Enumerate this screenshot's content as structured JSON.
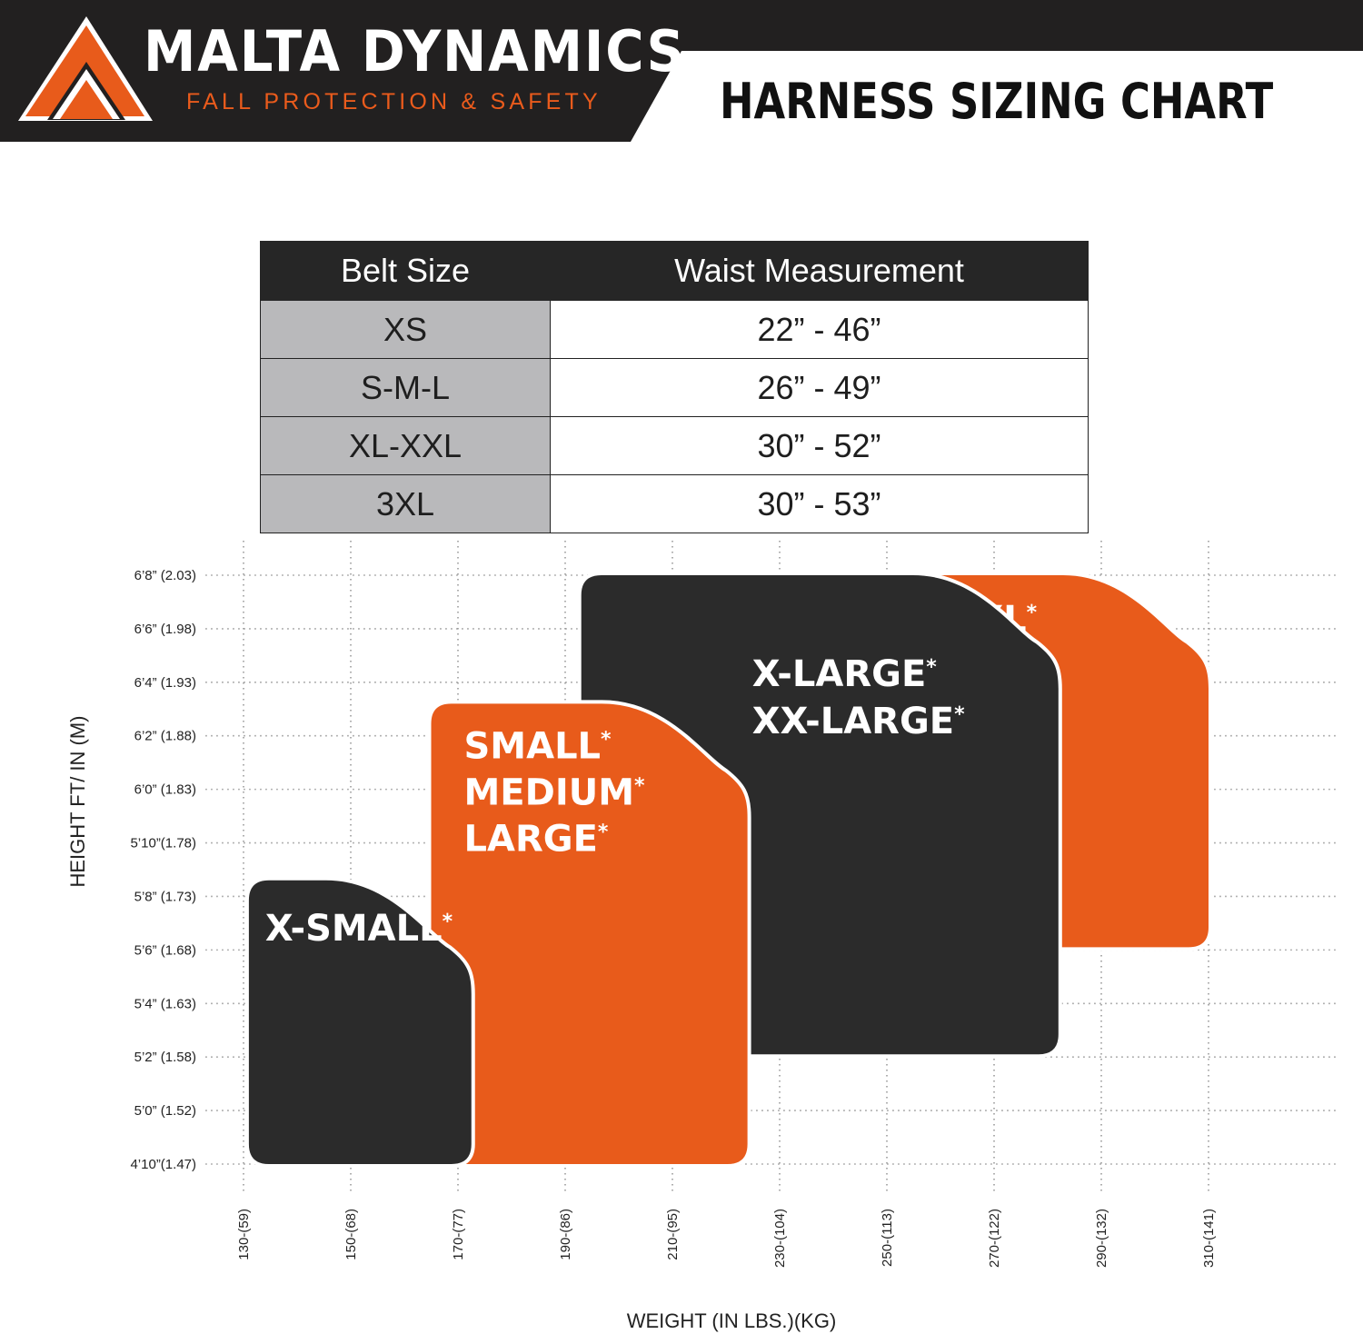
{
  "header": {
    "brand_name": "MALTA DYNAMICS",
    "tagline": "FALL PROTECTION & SAFETY",
    "title": "HARNESS SIZING CHART"
  },
  "colors": {
    "orange": "#e85b1b",
    "dark": "#2b2b2b",
    "header_bg": "#222020",
    "table_gray": "#b9b9bb"
  },
  "belt_table": {
    "headers": [
      "Belt Size",
      "Waist Measurement"
    ],
    "rows": [
      {
        "size": "XS",
        "waist": "22” - 46”"
      },
      {
        "size": "S-M-L",
        "waist": "26” - 49”"
      },
      {
        "size": "XL-XXL",
        "waist": "30” - 52”"
      },
      {
        "size": "3XL",
        "waist": "30” - 53”"
      }
    ]
  },
  "chart_data": {
    "type": "area",
    "xlabel": "WEIGHT (IN LBS.)(KG)",
    "ylabel": "HEIGHT FT/ IN (M)",
    "grid": true,
    "x_ticks": [
      {
        "value": 130,
        "label": "130-(59)"
      },
      {
        "value": 150,
        "label": "150-(68)"
      },
      {
        "value": 170,
        "label": "170-(77)"
      },
      {
        "value": 190,
        "label": "190-(86)"
      },
      {
        "value": 210,
        "label": "210-(95)"
      },
      {
        "value": 230,
        "label": "230-(104)"
      },
      {
        "value": 250,
        "label": "250-(113)"
      },
      {
        "value": 270,
        "label": "270-(122)"
      },
      {
        "value": 290,
        "label": "290-(132)"
      },
      {
        "value": 310,
        "label": "310-(141)"
      }
    ],
    "y_ticks": [
      {
        "value": 80,
        "label": "6’8”  (2.03)"
      },
      {
        "value": 78,
        "label": "6’6” (1.98)"
      },
      {
        "value": 76,
        "label": "6’4” (1.93)"
      },
      {
        "value": 74,
        "label": "6’2” (1.88)"
      },
      {
        "value": 72,
        "label": "6’0” (1.83)"
      },
      {
        "value": 70,
        "label": "5’10”(1.78)"
      },
      {
        "value": 68,
        "label": "5’8” (1.73)"
      },
      {
        "value": 66,
        "label": "5’6” (1.68)"
      },
      {
        "value": 64,
        "label": "5’4” (1.63)"
      },
      {
        "value": 62,
        "label": "5’2” (1.58)"
      },
      {
        "value": 60,
        "label": "5’0” (1.52)"
      },
      {
        "value": 58,
        "label": "4’10”(1.47)"
      }
    ],
    "xlim": [
      128,
      322
    ],
    "ylim": [
      57.9,
      80.1
    ],
    "zones": [
      {
        "lines": [
          "3XL"
        ],
        "color": "orange",
        "weight_range": [
          255,
          310
        ],
        "height_range": [
          66.1,
          80
        ]
      },
      {
        "lines": [
          "X-LARGE",
          "XX-LARGE"
        ],
        "color": "dark",
        "weight_range": [
          193,
          282
        ],
        "height_range": [
          62.1,
          80
        ]
      },
      {
        "lines": [
          "SMALL",
          "MEDIUM",
          "LARGE"
        ],
        "color": "orange",
        "weight_range": [
          165,
          224
        ],
        "height_range": [
          58,
          75.2
        ]
      },
      {
        "lines": [
          "X-SMALL"
        ],
        "color": "dark",
        "weight_range": [
          131,
          172.5
        ],
        "height_range": [
          58,
          68.6
        ]
      }
    ]
  }
}
